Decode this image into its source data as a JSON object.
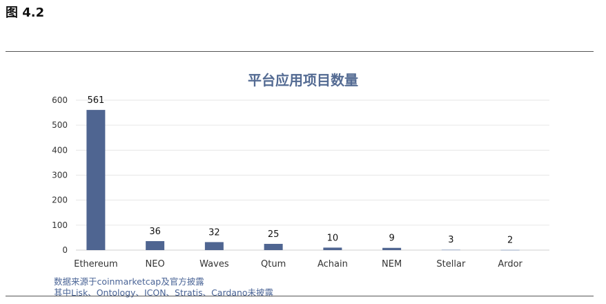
{
  "figure_label": "图 4.2",
  "notes": {
    "line1": "数据来源于coinmarketcap及官方披露",
    "line2": "其中Lisk、Ontology、ICON、Stratis、Cardano未披露"
  },
  "colors": {
    "bar": "#4f6591",
    "bar_light": "#b8c3d6",
    "title": "#536a92",
    "gridline": "#e6e6e6"
  },
  "chart_data": {
    "type": "bar",
    "title": "平台应用项目数量",
    "categories": [
      "Ethereum",
      "NEO",
      "Waves",
      "Qtum",
      "Achain",
      "NEM",
      "Stellar",
      "Ardor"
    ],
    "values": [
      561,
      36,
      32,
      25,
      10,
      9,
      3,
      2
    ],
    "data_labels": [
      "561",
      "36",
      "32",
      "25",
      "10",
      "9",
      "3",
      "2"
    ],
    "yticks": [
      "0",
      "100",
      "200",
      "300",
      "400",
      "500",
      "600"
    ],
    "ylim": [
      0,
      600
    ],
    "grid": true,
    "legend": "none",
    "xlabel": "",
    "ylabel": ""
  }
}
